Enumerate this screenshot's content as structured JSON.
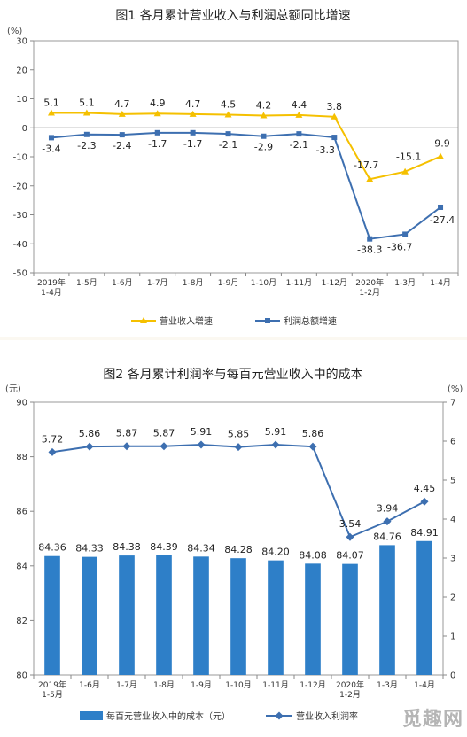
{
  "charts": [
    {
      "type": "line",
      "title": "图1 各月累计营业收入与利润总额同比增速",
      "yunit": "(%)",
      "ylim": [
        -50,
        30
      ],
      "yticks": [
        -50,
        -40,
        -30,
        -20,
        -10,
        0,
        10,
        20,
        30
      ],
      "categories": [
        "2019年\n1-4月",
        "1-5月",
        "1-6月",
        "1-7月",
        "1-8月",
        "1-9月",
        "1-10月",
        "1-11月",
        "1-12月",
        "2020年\n1-2月",
        "1-3月",
        "1-4月"
      ],
      "series": [
        {
          "name": "营业收入增速",
          "color": "#f5c000",
          "values": [
            5.1,
            5.1,
            4.7,
            4.9,
            4.7,
            4.5,
            4.2,
            4.4,
            3.8,
            -17.7,
            -15.1,
            -9.9
          ],
          "labels": [
            "5.1",
            "5.1",
            "4.7",
            "4.9",
            "4.7",
            "4.5",
            "4.2",
            "4.4",
            "3.8",
            "-17.7",
            "-15.1",
            "-9.9"
          ]
        },
        {
          "name": "利润总额增速",
          "color": "#3d6fb0",
          "values": [
            -3.4,
            -2.3,
            -2.4,
            -1.7,
            -1.7,
            -2.1,
            -2.9,
            -2.1,
            -3.3,
            -38.3,
            -36.7,
            -27.4
          ],
          "labels": [
            "-3.4",
            "-2.3",
            "-2.4",
            "-1.7",
            "-1.7",
            "-2.1",
            "-2.9",
            "-2.1",
            "-3.3",
            "-38.3",
            "-36.7",
            "-27.4"
          ]
        }
      ],
      "legend_position": "bottom"
    },
    {
      "type": "bar+line",
      "title": "图2 各月累计利润率与每百元营业收入中的成本",
      "yunit_left": "(元)",
      "yunit_right": "(%)",
      "ylim_left": [
        80,
        90
      ],
      "yticks_left": [
        80,
        82,
        84,
        86,
        88,
        90
      ],
      "ylim_right": [
        0,
        7
      ],
      "yticks_right": [
        0,
        1,
        2,
        3,
        4,
        5,
        6,
        7
      ],
      "categories": [
        "2019年\n1-5月",
        "1-6月",
        "1-7月",
        "1-8月",
        "1-9月",
        "1-10月",
        "1-11月",
        "1-12月",
        "2020年\n1-2月",
        "1-3月",
        "1-4月"
      ],
      "series": [
        {
          "name": "每百元营业收入中的成本（元）",
          "kind": "bar",
          "axis": "left",
          "color": "#2e7fc8",
          "values": [
            84.36,
            84.33,
            84.38,
            84.39,
            84.34,
            84.28,
            84.2,
            84.08,
            84.07,
            84.76,
            84.91
          ],
          "labels": [
            "84.36",
            "84.33",
            "84.38",
            "84.39",
            "84.34",
            "84.28",
            "84.20",
            "84.08",
            "84.07",
            "84.76",
            "84.91"
          ]
        },
        {
          "name": "营业收入利润率",
          "kind": "line",
          "axis": "right",
          "color": "#3d6fb0",
          "values": [
            5.72,
            5.86,
            5.87,
            5.87,
            5.91,
            5.85,
            5.91,
            5.86,
            3.54,
            3.94,
            4.45
          ],
          "labels": [
            "5.72",
            "5.86",
            "5.87",
            "5.87",
            "5.91",
            "5.85",
            "5.91",
            "5.86",
            "3.54",
            "3.94",
            "4.45"
          ]
        }
      ],
      "legend_position": "bottom"
    }
  ],
  "watermark": "觅趣网"
}
